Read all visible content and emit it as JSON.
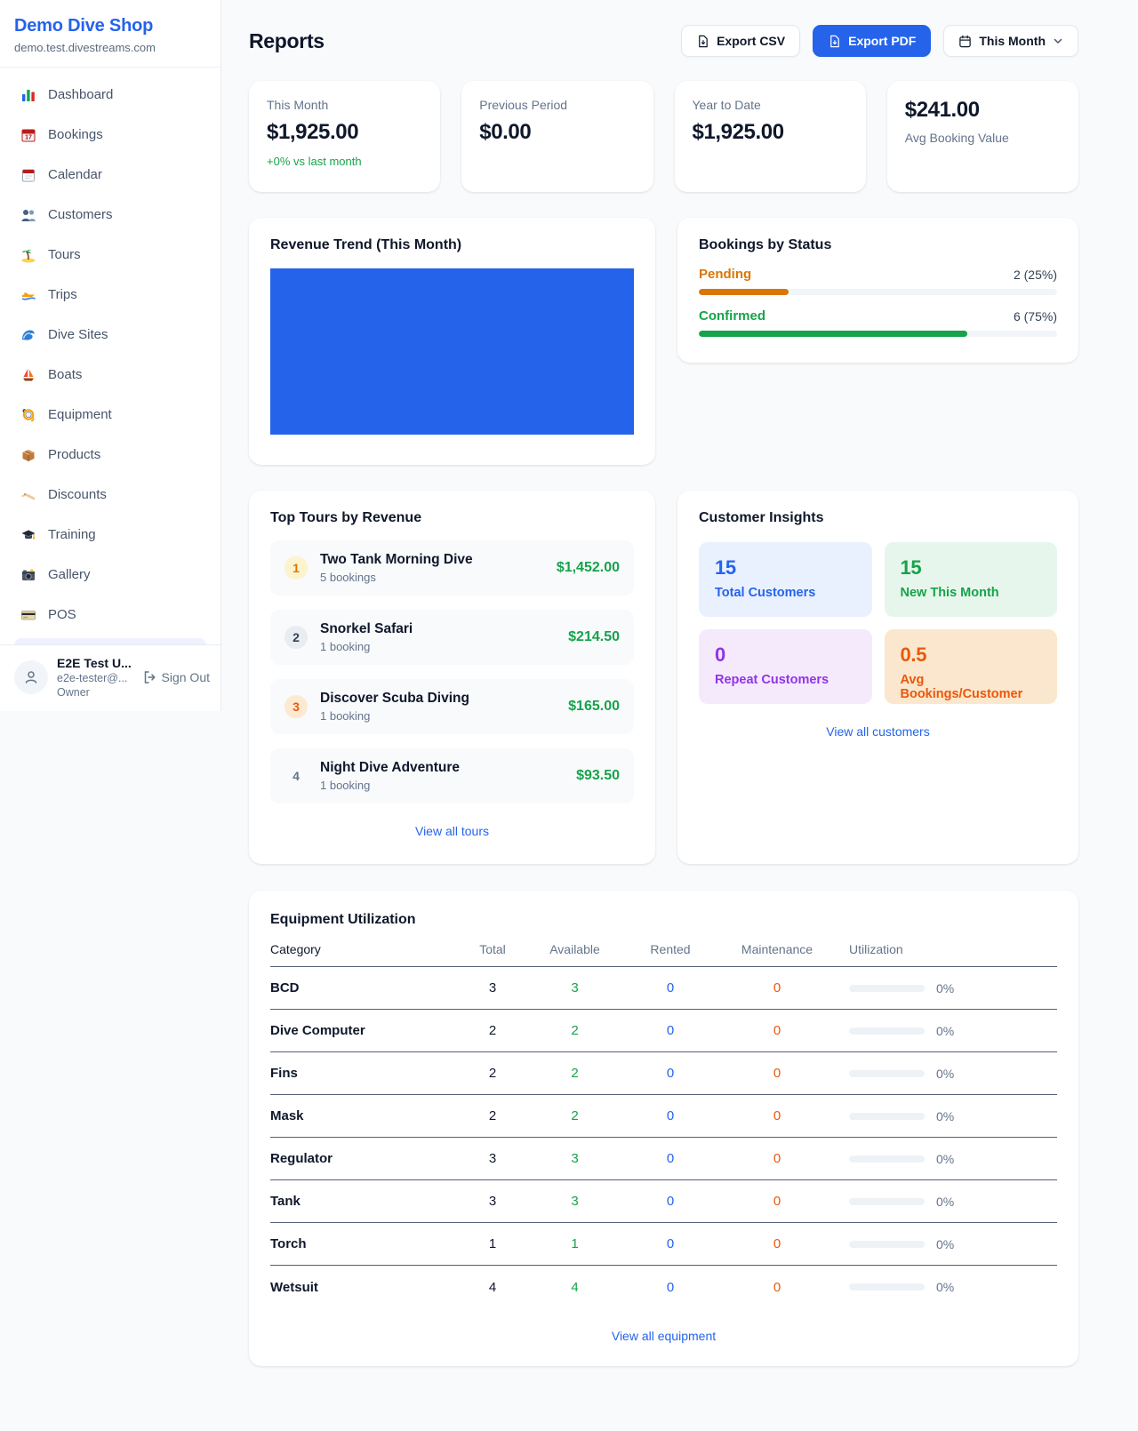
{
  "colors": {
    "brand_blue": "#2563eb",
    "chart_blue": "#2563eb",
    "success_green": "#16a34a",
    "pending_orange": "#d97706",
    "maintenance_orange": "#ea580c",
    "purple": "#9333ea"
  },
  "sidebar": {
    "brand_name": "Demo Dive Shop",
    "brand_domain": "demo.test.divestreams.com",
    "nav": [
      {
        "icon": "dashboard-chart-icon",
        "label": "Dashboard"
      },
      {
        "icon": "bookings-calendar-icon",
        "label": "Bookings"
      },
      {
        "icon": "calendar-icon",
        "label": "Calendar"
      },
      {
        "icon": "customers-icon",
        "label": "Customers"
      },
      {
        "icon": "tours-island-icon",
        "label": "Tours"
      },
      {
        "icon": "trips-boat-icon",
        "label": "Trips"
      },
      {
        "icon": "dive-sites-wave-icon",
        "label": "Dive Sites"
      },
      {
        "icon": "boats-sailboat-icon",
        "label": "Boats"
      },
      {
        "icon": "equipment-mask-icon",
        "label": "Equipment"
      },
      {
        "icon": "products-box-icon",
        "label": "Products"
      },
      {
        "icon": "discounts-tag-icon",
        "label": "Discounts"
      },
      {
        "icon": "training-cap-icon",
        "label": "Training"
      },
      {
        "icon": "gallery-camera-icon",
        "label": "Gallery"
      },
      {
        "icon": "pos-card-icon",
        "label": "POS"
      }
    ],
    "user": {
      "name": "E2E Test U...",
      "email": "e2e-tester@...",
      "role": "Owner",
      "sign_out_label": "Sign Out"
    }
  },
  "header": {
    "title": "Reports",
    "export_csv_label": "Export CSV",
    "export_pdf_label": "Export PDF",
    "period_label": "This Month"
  },
  "stats": [
    {
      "label": "This Month",
      "value": "$1,925.00",
      "delta": "+0% vs last month"
    },
    {
      "label": "Previous Period",
      "value": "$0.00"
    },
    {
      "label": "Year to Date",
      "value": "$1,925.00"
    },
    {
      "label": "Avg Booking Value",
      "value": "$241.00"
    }
  ],
  "revenue_trend": {
    "title": "Revenue Trend (This Month)"
  },
  "bookings_by_status": {
    "title": "Bookings by Status",
    "rows": [
      {
        "label": "Pending",
        "value": "2 (25%)",
        "bar_width": "25%"
      },
      {
        "label": "Confirmed",
        "value": "6 (75%)",
        "bar_width": "75%"
      }
    ]
  },
  "top_tours": {
    "title": "Top Tours by Revenue",
    "items": [
      {
        "rank": "1",
        "name": "Two Tank Morning Dive",
        "bookings": "5 bookings",
        "amount": "$1,452.00"
      },
      {
        "rank": "2",
        "name": "Snorkel Safari",
        "bookings": "1 booking",
        "amount": "$214.50"
      },
      {
        "rank": "3",
        "name": "Discover Scuba Diving",
        "bookings": "1 booking",
        "amount": "$165.00"
      },
      {
        "rank": "4",
        "name": "Night Dive Adventure",
        "bookings": "1 booking",
        "amount": "$93.50"
      }
    ],
    "link_label": "View all tours"
  },
  "customer_insights": {
    "title": "Customer Insights",
    "tiles": [
      {
        "value": "15",
        "label": "Total Customers"
      },
      {
        "value": "15",
        "label": "New This Month"
      },
      {
        "value": "0",
        "label": "Repeat Customers"
      },
      {
        "value": "0.5",
        "label": "Avg Bookings/Customer"
      }
    ],
    "link_label": "View all customers"
  },
  "equipment": {
    "title": "Equipment Utilization",
    "columns": [
      "Category",
      "Total",
      "Available",
      "Rented",
      "Maintenance",
      "Utilization"
    ],
    "rows": [
      {
        "category": "BCD",
        "total": "3",
        "available": "3",
        "rented": "0",
        "maintenance": "0",
        "utilization": "0%",
        "bar_width": "0%"
      },
      {
        "category": "Dive Computer",
        "total": "2",
        "available": "2",
        "rented": "0",
        "maintenance": "0",
        "utilization": "0%",
        "bar_width": "0%"
      },
      {
        "category": "Fins",
        "total": "2",
        "available": "2",
        "rented": "0",
        "maintenance": "0",
        "utilization": "0%",
        "bar_width": "0%"
      },
      {
        "category": "Mask",
        "total": "2",
        "available": "2",
        "rented": "0",
        "maintenance": "0",
        "utilization": "0%",
        "bar_width": "0%"
      },
      {
        "category": "Regulator",
        "total": "3",
        "available": "3",
        "rented": "0",
        "maintenance": "0",
        "utilization": "0%",
        "bar_width": "0%"
      },
      {
        "category": "Tank",
        "total": "3",
        "available": "3",
        "rented": "0",
        "maintenance": "0",
        "utilization": "0%",
        "bar_width": "0%"
      },
      {
        "category": "Torch",
        "total": "1",
        "available": "1",
        "rented": "0",
        "maintenance": "0",
        "utilization": "0%",
        "bar_width": "0%"
      },
      {
        "category": "Wetsuit",
        "total": "4",
        "available": "4",
        "rented": "0",
        "maintenance": "0",
        "utilization": "0%",
        "bar_width": "0%"
      }
    ],
    "link_label": "View all equipment"
  }
}
